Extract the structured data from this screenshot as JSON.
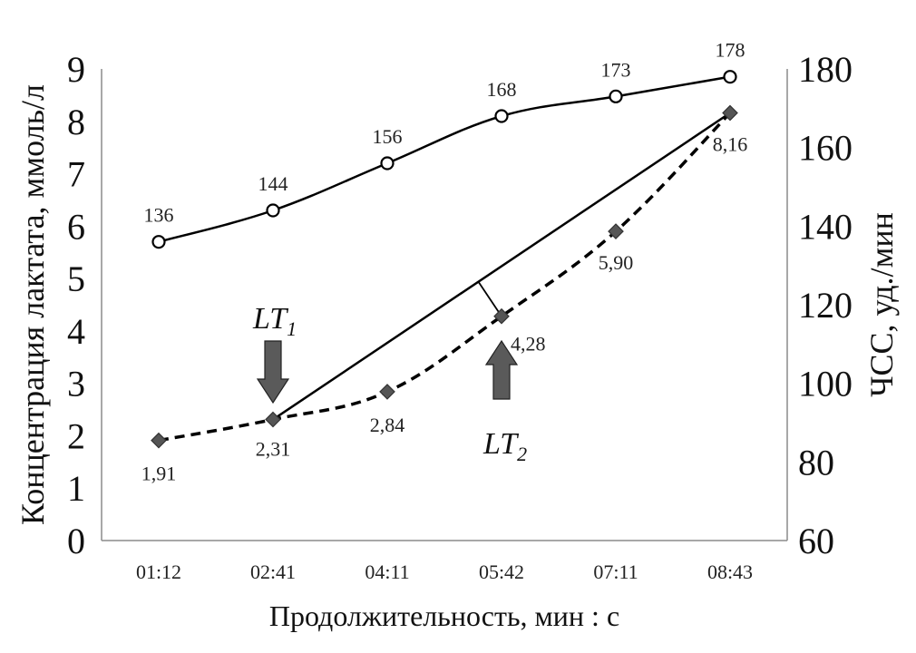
{
  "chart_data": {
    "type": "line",
    "categories": [
      "01:12",
      "02:41",
      "04:11",
      "05:42",
      "07:11",
      "08:43"
    ],
    "xlabel": "Продолжительность, мин : с",
    "ylabel_left": "Концентрация лактата, ммоль/л",
    "ylabel_right": "ЧСС, уд./мин",
    "ylim_left": [
      0,
      9
    ],
    "ylim_right": [
      60,
      180
    ],
    "yticks_left": [
      "0",
      "1",
      "2",
      "3",
      "4",
      "5",
      "6",
      "7",
      "8",
      "9"
    ],
    "yticks_right": [
      "60",
      "80",
      "100",
      "120",
      "140",
      "160",
      "180"
    ],
    "grid": false,
    "series": [
      {
        "axis": "right",
        "style": "solid-smooth",
        "marker": "open-circle",
        "values": [
          136,
          144,
          156,
          168,
          173,
          178
        ],
        "labels": [
          "136",
          "144",
          "156",
          "168",
          "173",
          "178"
        ]
      },
      {
        "axis": "left",
        "style": "dashed-smooth",
        "marker": "filled-diamond",
        "values": [
          1.91,
          2.31,
          2.84,
          4.28,
          5.9,
          8.16
        ],
        "labels": [
          "1,91",
          "2,31",
          "2,84",
          "4,28",
          "5,90",
          "8,16"
        ]
      }
    ],
    "annotations": [
      {
        "type": "down-arrow",
        "text": "LT",
        "subscript": "1",
        "category": "02:41"
      },
      {
        "type": "up-arrow",
        "text": "LT",
        "subscript": "2",
        "category": "05:42"
      }
    ],
    "reference_line": {
      "from_category": "02:41",
      "to_category": "08:43",
      "from_value": 2.31,
      "to_value": 8.16,
      "axis": "left"
    },
    "colors": {
      "line": "#000000",
      "marker_fill": "#555555",
      "arrow": "#5a5a5a"
    }
  }
}
